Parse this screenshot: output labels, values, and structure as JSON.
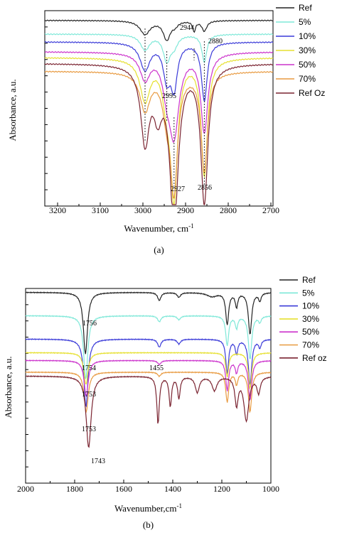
{
  "chart_data": [
    {
      "type": "line",
      "panel_label": "(a)",
      "xlabel": "Wavenumber, cm",
      "xlabel_sup": "-1",
      "ylabel": "Absorbance, a.u.",
      "xlim": [
        3230,
        2695
      ],
      "xticks": [
        3200,
        3100,
        3000,
        2900,
        2800,
        2700
      ],
      "grid": false,
      "legend_position": "outside-right",
      "annotations": [
        {
          "text": "2944",
          "x": 2944
        },
        {
          "text": "2880",
          "x": 2880
        },
        {
          "text": "2995",
          "x": 2995
        },
        {
          "text": "2927",
          "x": 2927
        },
        {
          "text": "2856",
          "x": 2856
        }
      ],
      "series": [
        {
          "name": "Ref",
          "color": "#222222",
          "baseline": 0.95,
          "peaks": [
            [
              2995,
              0.4,
              14
            ],
            [
              2944,
              0.55,
              10
            ],
            [
              2925,
              0.12,
              8
            ],
            [
              2880,
              0.3,
              4
            ],
            [
              2856,
              0.3,
              7
            ]
          ]
        },
        {
          "name": "5%",
          "color": "#7ee8d8",
          "baseline": 0.88,
          "peaks": [
            [
              2995,
              0.45,
              13
            ],
            [
              2944,
              0.75,
              10
            ],
            [
              2927,
              0.3,
              10
            ],
            [
              2856,
              0.8,
              7
            ]
          ]
        },
        {
          "name": "10%",
          "color": "#3a3ad8",
          "baseline": 0.84,
          "peaks": [
            [
              2995,
              0.8,
              14
            ],
            [
              2944,
              1.0,
              10
            ],
            [
              2927,
              1.25,
              9
            ],
            [
              2856,
              1.7,
              8
            ]
          ]
        },
        {
          "name": "30%",
          "color": "#e6e030",
          "baseline": 0.76,
          "peaks": [
            [
              2995,
              1.2,
              14
            ],
            [
              2944,
              1.0,
              12
            ],
            [
              2927,
              3.9,
              10
            ],
            [
              2856,
              3.4,
              9
            ]
          ]
        },
        {
          "name": "50%",
          "color": "#cc33cc",
          "baseline": 0.79,
          "peaks": [
            [
              2995,
              0.75,
              14
            ],
            [
              2944,
              0.8,
              12
            ],
            [
              2927,
              2.3,
              14
            ],
            [
              2856,
              2.3,
              10
            ]
          ]
        },
        {
          "name": "70%",
          "color": "#e89a40",
          "baseline": 0.69,
          "peaks": [
            [
              2995,
              1.1,
              14
            ],
            [
              2944,
              1.0,
              12
            ],
            [
              2927,
              3.3,
              10
            ],
            [
              2856,
              2.9,
              9
            ]
          ]
        },
        {
          "name": "Ref Oz",
          "color": "#7a2330",
          "baseline": 0.73,
          "peaks": [
            [
              2995,
              2.2,
              12
            ],
            [
              2965,
              1.2,
              12
            ],
            [
              2927,
              4.6,
              12
            ],
            [
              2856,
              4.0,
              10
            ]
          ]
        }
      ]
    },
    {
      "type": "line",
      "panel_label": "(b)",
      "xlabel": "Wavenumber,cm",
      "xlabel_sup": "-1",
      "ylabel": "Absorbance, a.u.",
      "xlim": [
        2000,
        1000
      ],
      "xticks": [
        2000,
        1800,
        1600,
        1400,
        1200,
        1000
      ],
      "grid": false,
      "legend_position": "outside-right",
      "annotations": [
        {
          "text": "1756",
          "x": 1756
        },
        {
          "text": "1754",
          "x": 1754
        },
        {
          "text": "1455",
          "x": 1455
        },
        {
          "text": "1753",
          "x": 1753
        },
        {
          "text": "1753",
          "x": 1753
        },
        {
          "text": "1743",
          "x": 1743
        }
      ],
      "series": [
        {
          "name": "Ref",
          "color": "#222222",
          "baseline": 0.98,
          "peaks": [
            [
              1756,
              1.55,
              10
            ],
            [
              1455,
              0.2,
              8
            ],
            [
              1375,
              0.12,
              8
            ],
            [
              1240,
              0.1,
              25
            ],
            [
              1178,
              0.8,
              7
            ],
            [
              1140,
              0.35,
              6
            ],
            [
              1085,
              1.05,
              8
            ],
            [
              1045,
              0.2,
              6
            ]
          ]
        },
        {
          "name": "5%",
          "color": "#7ee8d8",
          "baseline": 0.86,
          "peaks": [
            [
              1755,
              1.6,
              10
            ],
            [
              1455,
              0.15,
              8
            ],
            [
              1375,
              0.1,
              8
            ],
            [
              1178,
              0.75,
              7
            ],
            [
              1140,
              0.3,
              6
            ],
            [
              1085,
              1.1,
              8
            ],
            [
              1045,
              0.15,
              6
            ]
          ]
        },
        {
          "name": "10%",
          "color": "#3a3ad8",
          "baseline": 0.74,
          "peaks": [
            [
              1754,
              1.7,
              10
            ],
            [
              1455,
              0.2,
              8
            ],
            [
              1375,
              0.12,
              8
            ],
            [
              1178,
              0.85,
              7
            ],
            [
              1140,
              0.35,
              6
            ],
            [
              1085,
              1.15,
              8
            ],
            [
              1045,
              0.2,
              6
            ]
          ]
        },
        {
          "name": "30%",
          "color": "#e6e030",
          "baseline": 0.67,
          "peaks": [
            [
              1754,
              0.8,
              10
            ],
            [
              1178,
              0.6,
              7
            ],
            [
              1085,
              0.9,
              8
            ]
          ]
        },
        {
          "name": "50%",
          "color": "#cc33cc",
          "baseline": 0.63,
          "peaks": [
            [
              1753,
              0.9,
              10
            ],
            [
              1455,
              0.1,
              8
            ],
            [
              1178,
              0.75,
              7
            ],
            [
              1140,
              0.3,
              6
            ],
            [
              1085,
              1.0,
              8
            ]
          ]
        },
        {
          "name": "70%",
          "color": "#e89a40",
          "baseline": 0.57,
          "peaks": [
            [
              1753,
              1.0,
              10
            ],
            [
              1455,
              0.1,
              8
            ],
            [
              1178,
              0.75,
              7
            ],
            [
              1140,
              0.3,
              6
            ],
            [
              1085,
              1.0,
              8
            ]
          ]
        },
        {
          "name": "Ref oz",
          "color": "#7a2330",
          "baseline": 0.55,
          "peaks": [
            [
              1743,
              1.8,
              12
            ],
            [
              1460,
              1.2,
              6
            ],
            [
              1410,
              0.75,
              6
            ],
            [
              1375,
              0.55,
              6
            ],
            [
              1300,
              0.4,
              10
            ],
            [
              1230,
              0.35,
              12
            ],
            [
              1140,
              0.7,
              8
            ],
            [
              1100,
              1.1,
              12
            ],
            [
              1050,
              0.4,
              8
            ]
          ]
        }
      ]
    }
  ]
}
